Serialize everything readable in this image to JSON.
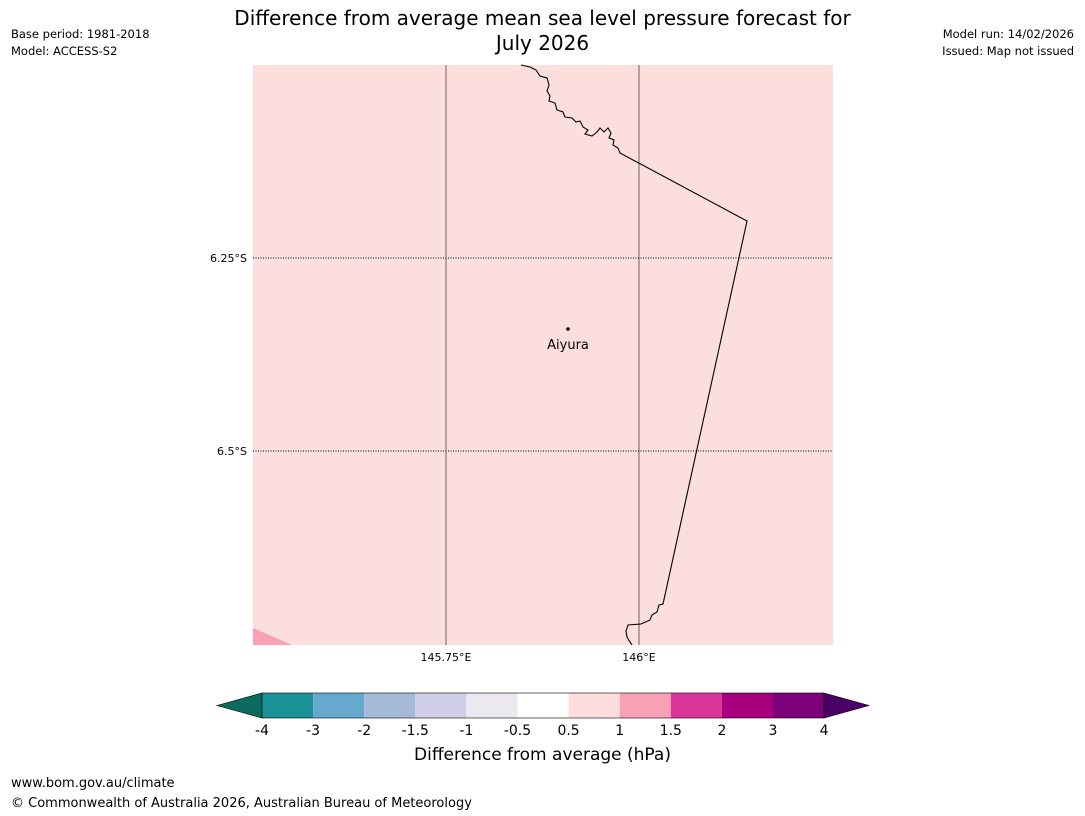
{
  "header": {
    "title_line1": "Difference from average mean sea level pressure forecast for",
    "title_line2": "July 2026",
    "base_period": "Base period: 1981-2018",
    "model": "Model: ACCESS-S2",
    "model_run": "Model run: 14/02/2026",
    "issued": "Issued: Map not issued"
  },
  "map": {
    "background_color": "#fcdfdd",
    "latitude_labels": [
      "6.25°S",
      "6.5°S"
    ],
    "longitude_labels": [
      "145.75°E",
      "146°E"
    ],
    "place": {
      "name": "Aiyura"
    }
  },
  "colorbar": {
    "title": "Difference from average (hPa)",
    "ticks": [
      "-4",
      "-3",
      "-2",
      "-1.5",
      "-1",
      "-0.5",
      "0.5",
      "1",
      "1.5",
      "2",
      "3",
      "4"
    ],
    "under_color": "#0b6b5e",
    "over_color": "#4b0068",
    "colors": [
      "#1b9296",
      "#67a8cf",
      "#a5bad9",
      "#cfcee6",
      "#ebe9ef",
      "#ffffff",
      "#fcdfdd",
      "#f9a0b6",
      "#d93498",
      "#a7007f",
      "#7b0079"
    ]
  },
  "footer": {
    "url": "www.bom.gov.au/climate",
    "copyright": "© Commonwealth of Australia 2026, Australian Bureau of Meteorology"
  }
}
